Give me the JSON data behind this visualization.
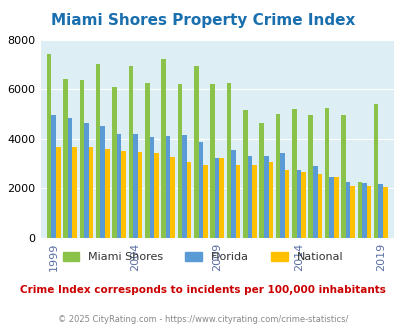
{
  "title": "Miami Shores Property Crime Index",
  "title_color": "#1a6faf",
  "subtitle": "Crime Index corresponds to incidents per 100,000 inhabitants",
  "subtitle_color": "#cc0000",
  "copyright": "© 2025 CityRating.com - https://www.cityrating.com/crime-statistics/",
  "copyright_color": "#888888",
  "years": [
    1999,
    2000,
    2001,
    2002,
    2003,
    2004,
    2005,
    2006,
    2007,
    2008,
    2009,
    2010,
    2011,
    2012,
    2013,
    2014,
    2015,
    2016,
    2017,
    2018,
    2019
  ],
  "miami_shores": [
    7400,
    6400,
    6350,
    7000,
    6100,
    6950,
    6250,
    7200,
    6200,
    6950,
    6200,
    6250,
    5150,
    4650,
    5000,
    5200,
    4950,
    5250,
    4950,
    2250,
    5400
  ],
  "florida": [
    4950,
    4850,
    4650,
    4500,
    4200,
    4200,
    4050,
    4100,
    4150,
    3850,
    3200,
    3550,
    3300,
    3300,
    3400,
    2750,
    2900,
    2450,
    2250,
    2200,
    2150
  ],
  "national": [
    3650,
    3650,
    3650,
    3600,
    3500,
    3450,
    3400,
    3250,
    3050,
    2950,
    3200,
    2950,
    2950,
    3050,
    2750,
    2650,
    2550,
    2450,
    2100,
    2100,
    2050
  ],
  "miami_shores_color": "#8bc34a",
  "florida_color": "#5b9bd5",
  "national_color": "#ffc000",
  "background_color": "#ddeef5",
  "ylim": [
    0,
    8000
  ],
  "yticks": [
    0,
    2000,
    4000,
    6000,
    8000
  ],
  "xtick_years": [
    1999,
    2004,
    2009,
    2014,
    2019
  ],
  "legend_labels": [
    "Miami Shores",
    "Florida",
    "National"
  ],
  "bar_width": 0.28
}
